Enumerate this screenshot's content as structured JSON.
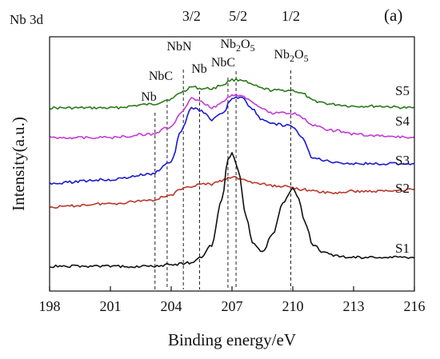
{
  "chart_data": {
    "type": "line",
    "panel_label": "(a)",
    "header_text": "Nb  3d",
    "xlabel": "Binding energy/eV",
    "ylabel": "Intensity(a.u.)",
    "xlim": [
      198,
      216
    ],
    "x_ticks": [
      198,
      201,
      204,
      207,
      210,
      213,
      216
    ],
    "x_tick_labels": [
      "198",
      "201",
      "204",
      "207",
      "210",
      "213",
      "216"
    ],
    "y_ticks_shown": false,
    "grid": false,
    "legend": "series labels placed at right end of each curve",
    "spin_orbit_labels": [
      {
        "text": "3/2",
        "x": 205.0
      },
      {
        "text": "5/2",
        "x": 207.3
      },
      {
        "text": "1/2",
        "x": 209.9
      }
    ],
    "reference_lines": [
      {
        "label": "Nb",
        "x": 203.2
      },
      {
        "label": "NbC",
        "x": 203.8
      },
      {
        "label": "NbN",
        "x": 204.6
      },
      {
        "label": "Nb",
        "x": 205.4
      },
      {
        "label": "NbC",
        "x": 206.8
      },
      {
        "label": "Nb2O5",
        "x": 207.2
      },
      {
        "label": "Nb2O5",
        "x": 209.9
      }
    ],
    "series": [
      {
        "name": "S5",
        "color": "#2a7a1a",
        "x": [
          198,
          201,
          203,
          204,
          204.5,
          205,
          205.5,
          206,
          206.5,
          207,
          207.5,
          208,
          208.5,
          209,
          209.5,
          210,
          210.5,
          211,
          212,
          213,
          214,
          216
        ],
        "y": [
          0.0,
          0.0,
          0.02,
          0.05,
          0.09,
          0.12,
          0.11,
          0.11,
          0.13,
          0.16,
          0.16,
          0.13,
          0.11,
          0.1,
          0.1,
          0.1,
          0.08,
          0.04,
          0.02,
          0.01,
          0.01,
          0.0
        ]
      },
      {
        "name": "S4",
        "color": "#c43ad6",
        "x": [
          198,
          201,
          203,
          204,
          204.5,
          205,
          205.5,
          206,
          206.5,
          207,
          207.5,
          208,
          208.5,
          209,
          209.5,
          210,
          210.5,
          211,
          212,
          213,
          214,
          216
        ],
        "y": [
          0.0,
          0.0,
          0.02,
          0.06,
          0.14,
          0.22,
          0.2,
          0.17,
          0.2,
          0.24,
          0.24,
          0.2,
          0.16,
          0.14,
          0.14,
          0.14,
          0.11,
          0.07,
          0.04,
          0.02,
          0.01,
          0.0
        ]
      },
      {
        "name": "S3",
        "color": "#1a1ad0",
        "x": [
          198,
          201,
          203,
          204,
          204.5,
          205,
          205.5,
          206,
          206.5,
          207,
          207.5,
          208,
          208.5,
          209,
          209.5,
          210,
          210.5,
          211,
          212,
          213,
          214,
          216
        ],
        "y": [
          0.0,
          0.02,
          0.05,
          0.12,
          0.3,
          0.43,
          0.41,
          0.36,
          0.39,
          0.48,
          0.49,
          0.42,
          0.36,
          0.34,
          0.33,
          0.32,
          0.25,
          0.14,
          0.12,
          0.11,
          0.11,
          0.11
        ]
      },
      {
        "name": "S2",
        "color": "#b8382a",
        "x": [
          198,
          201,
          203,
          204,
          204.5,
          205,
          205.5,
          206,
          206.5,
          207,
          207.5,
          208,
          208.5,
          209,
          209.5,
          210,
          210.5,
          211,
          212,
          213,
          214,
          216
        ],
        "y": [
          0.0,
          0.02,
          0.04,
          0.07,
          0.1,
          0.12,
          0.13,
          0.13,
          0.15,
          0.17,
          0.16,
          0.14,
          0.13,
          0.12,
          0.12,
          0.11,
          0.1,
          0.09,
          0.08,
          0.09,
          0.09,
          0.1
        ]
      },
      {
        "name": "S1",
        "color": "#111111",
        "x": [
          198,
          201,
          203,
          204,
          205,
          205.5,
          206,
          206.5,
          206.8,
          207,
          207.3,
          207.7,
          208,
          208.5,
          209,
          209.5,
          210,
          210.3,
          210.6,
          211,
          211.5,
          212,
          213,
          214,
          216
        ],
        "y": [
          0.0,
          0.0,
          0.0,
          0.01,
          0.02,
          0.05,
          0.12,
          0.38,
          0.6,
          0.65,
          0.55,
          0.28,
          0.14,
          0.08,
          0.18,
          0.36,
          0.44,
          0.38,
          0.25,
          0.12,
          0.08,
          0.06,
          0.05,
          0.05,
          0.05
        ]
      }
    ]
  }
}
